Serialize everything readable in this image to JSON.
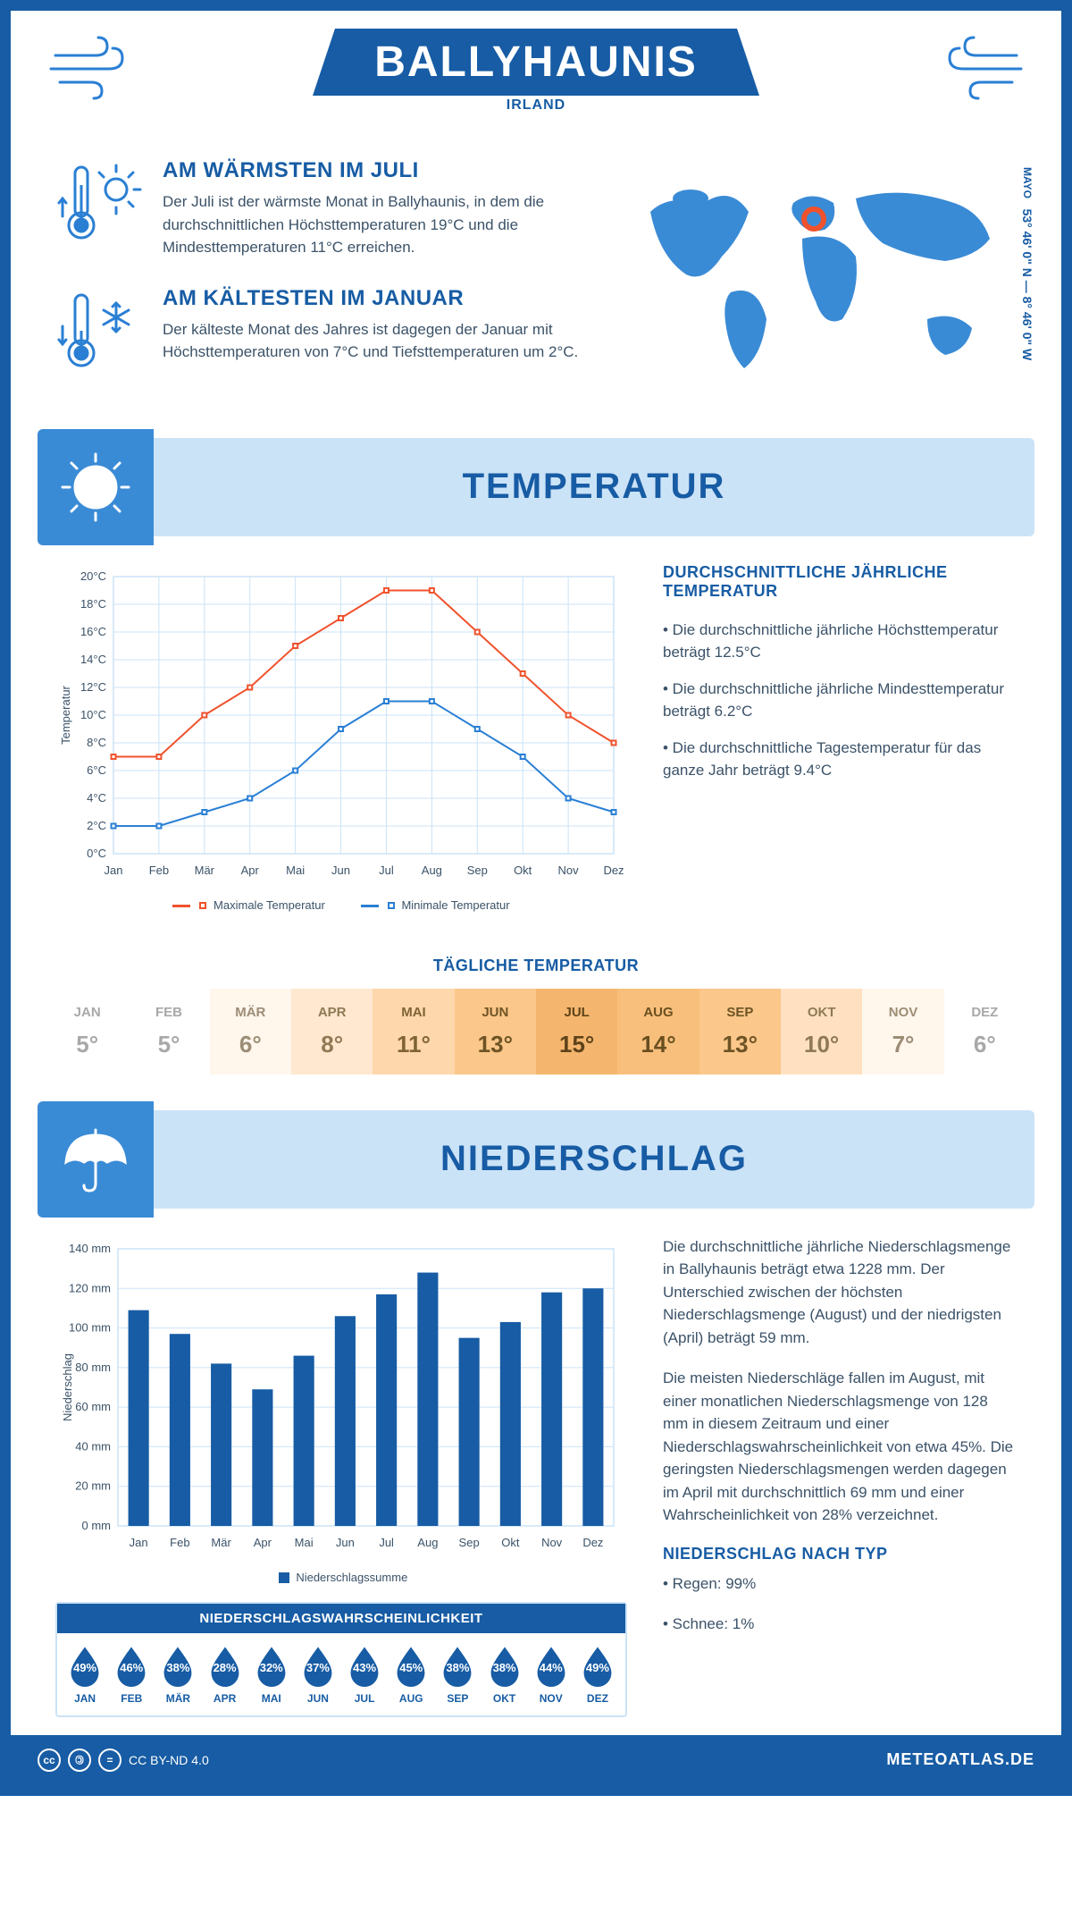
{
  "header": {
    "city": "BALLYHAUNIS",
    "country": "IRLAND"
  },
  "coords": {
    "lat": "53° 46' 0\" N",
    "sep": "—",
    "lon": "8° 46' 0\" W",
    "region": "MAYO"
  },
  "warm": {
    "title": "AM WÄRMSTEN IM JULI",
    "text": "Der Juli ist der wärmste Monat in Ballyhaunis, in dem die durchschnittlichen Höchsttemperaturen 19°C und die Mindesttemperaturen 11°C erreichen."
  },
  "cold": {
    "title": "AM KÄLTESTEN IM JANUAR",
    "text": "Der kälteste Monat des Jahres ist dagegen der Januar mit Höchsttemperaturen von 7°C und Tiefsttemperaturen um 2°C."
  },
  "sections": {
    "temp": "TEMPERATUR",
    "precip": "NIEDERSCHLAG"
  },
  "temp_chart": {
    "type": "line",
    "months": [
      "Jan",
      "Feb",
      "Mär",
      "Apr",
      "Mai",
      "Jun",
      "Jul",
      "Aug",
      "Sep",
      "Okt",
      "Nov",
      "Dez"
    ],
    "max": [
      7,
      7,
      10,
      12,
      15,
      17,
      19,
      19,
      16,
      13,
      10,
      8
    ],
    "min": [
      2,
      2,
      3,
      4,
      6,
      9,
      11,
      11,
      9,
      7,
      4,
      3
    ],
    "ylim": [
      0,
      20
    ],
    "ystep": 2,
    "yunit": "°C",
    "ylabel": "Temperatur",
    "grid_color": "#cbe3f7",
    "max_color": "#f0522d",
    "min_color": "#2a7fd4",
    "legend_max": "Maximale Temperatur",
    "legend_min": "Minimale Temperatur",
    "line_width": 2,
    "marker_size": 5,
    "marker": "square"
  },
  "temp_text": {
    "title": "DURCHSCHNITTLICHE JÄHRLICHE TEMPERATUR",
    "p1": "• Die durchschnittliche jährliche Höchsttemperatur beträgt 12.5°C",
    "p2": "• Die durchschnittliche jährliche Mindesttemperatur beträgt 6.2°C",
    "p3": "• Die durchschnittliche Tagestemperatur für das ganze Jahr beträgt 9.4°C"
  },
  "daily": {
    "title": "TÄGLICHE TEMPERATUR",
    "months": [
      "JAN",
      "FEB",
      "MÄR",
      "APR",
      "MAI",
      "JUN",
      "JUL",
      "AUG",
      "SEP",
      "OKT",
      "NOV",
      "DEZ"
    ],
    "values": [
      "5°",
      "5°",
      "6°",
      "8°",
      "11°",
      "13°",
      "15°",
      "14°",
      "13°",
      "10°",
      "7°",
      "6°"
    ],
    "bg_colors": [
      "#ffffff",
      "#ffffff",
      "#fff6ec",
      "#ffe8cf",
      "#ffd7ac",
      "#fbc78a",
      "#f4b66e",
      "#f8bf7c",
      "#fbc78a",
      "#ffe1c1",
      "#fff6ec",
      "#ffffff"
    ],
    "text_colors": [
      "#a8a8a8",
      "#a8a8a8",
      "#9c8d75",
      "#8f7a55",
      "#7f6437",
      "#6e5425",
      "#5e431a",
      "#6a4f20",
      "#6e5425",
      "#8f7a55",
      "#9c8d75",
      "#a8a8a8"
    ]
  },
  "precip_chart": {
    "type": "bar",
    "months": [
      "Jan",
      "Feb",
      "Mär",
      "Apr",
      "Mai",
      "Jun",
      "Jul",
      "Aug",
      "Sep",
      "Okt",
      "Nov",
      "Dez"
    ],
    "values": [
      109,
      97,
      82,
      69,
      86,
      106,
      117,
      128,
      95,
      103,
      118,
      120
    ],
    "ylim": [
      0,
      140
    ],
    "ystep": 20,
    "yunit": " mm",
    "ylabel": "Niederschlag",
    "bar_color": "#175ca4",
    "grid_color": "#cbe3f7",
    "bar_width": 0.5,
    "legend_label": "Niederschlagssumme"
  },
  "precip_text": {
    "p1": "Die durchschnittliche jährliche Niederschlagsmenge in Ballyhaunis beträgt etwa 1228 mm. Der Unterschied zwischen der höchsten Niederschlagsmenge (August) und der niedrigsten (April) beträgt 59 mm.",
    "p2": "Die meisten Niederschläge fallen im August, mit einer monatlichen Niederschlagsmenge von 128 mm in diesem Zeitraum und einer Niederschlagswahrscheinlichkeit von etwa 45%. Die geringsten Niederschlagsmengen werden dagegen im April mit durchschnittlich 69 mm und einer Wahrscheinlichkeit von 28% verzeichnet.",
    "type_title": "NIEDERSCHLAG NACH TYP",
    "type_rain": "• Regen: 99%",
    "type_snow": "• Schnee: 1%"
  },
  "prob": {
    "title": "NIEDERSCHLAGSWAHRSCHEINLICHKEIT",
    "months": [
      "JAN",
      "FEB",
      "MÄR",
      "APR",
      "MAI",
      "JUN",
      "JUL",
      "AUG",
      "SEP",
      "OKT",
      "NOV",
      "DEZ"
    ],
    "values": [
      "49%",
      "46%",
      "38%",
      "28%",
      "32%",
      "37%",
      "43%",
      "45%",
      "38%",
      "38%",
      "44%",
      "49%"
    ],
    "drop_color": "#175ca4"
  },
  "footer": {
    "license": "CC BY-ND 4.0",
    "site": "METEOATLAS.DE"
  }
}
